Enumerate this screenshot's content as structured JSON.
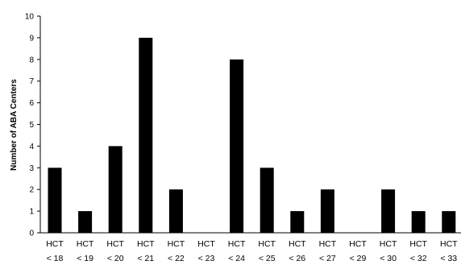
{
  "chart_data": {
    "type": "bar",
    "title": "",
    "xlabel": "",
    "ylabel": "Number of ABA Centers",
    "ylim": [
      0,
      10
    ],
    "yticks": [
      0,
      1,
      2,
      3,
      4,
      5,
      6,
      7,
      8,
      9,
      10
    ],
    "grid": false,
    "legend": "none",
    "bar_color": "#000000",
    "categories": [
      {
        "line1": "HCT",
        "line2": "< 18"
      },
      {
        "line1": "HCT",
        "line2": "< 19"
      },
      {
        "line1": "HCT",
        "line2": "< 20"
      },
      {
        "line1": "HCT",
        "line2": "< 21"
      },
      {
        "line1": "HCT",
        "line2": "< 22"
      },
      {
        "line1": "HCT",
        "line2": "< 23"
      },
      {
        "line1": "HCT",
        "line2": "< 24"
      },
      {
        "line1": "HCT",
        "line2": "< 25"
      },
      {
        "line1": "HCT",
        "line2": "< 26"
      },
      {
        "line1": "HCT",
        "line2": "< 27"
      },
      {
        "line1": "HCT",
        "line2": "< 29"
      },
      {
        "line1": "HCT",
        "line2": "< 30"
      },
      {
        "line1": "HCT",
        "line2": "< 32"
      },
      {
        "line1": "HCT",
        "line2": "< 33"
      }
    ],
    "values": [
      3,
      1,
      4,
      9,
      2,
      0,
      8,
      3,
      1,
      2,
      0,
      2,
      1,
      1
    ]
  }
}
